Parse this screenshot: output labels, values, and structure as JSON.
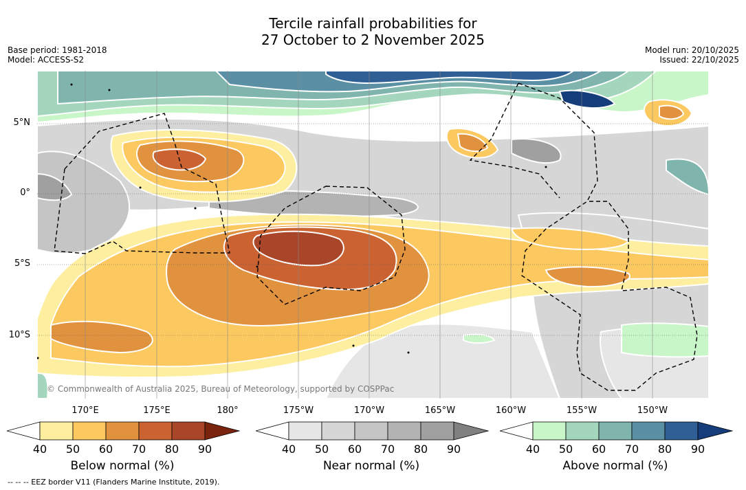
{
  "title_line1": "Tercile rainfall probabilities for",
  "title_line2": "27 October to 2 November 2025",
  "meta_left": {
    "base_period": "Base period: 1981-2018",
    "model": "Model: ACCESS-S2"
  },
  "meta_right": {
    "model_run": "Model run: 20/10/2025",
    "issued": "Issued: 22/10/2025"
  },
  "lat_labels": [
    "5°N",
    "0°",
    "5°S",
    "10°S"
  ],
  "lon_labels": [
    "170°E",
    "175°E",
    "180°",
    "175°W",
    "170°W",
    "165°W",
    "160°W",
    "155°W",
    "150°W"
  ],
  "copyright": "© Commonwealth of Australia 2025, Bureau of Meteorology, supported by COSPPac",
  "footnote": "--  --  -- EEZ border V11 (Flanders Marine Institute, 2019).",
  "colorbars": [
    {
      "label": "Below normal (%)",
      "ticks": [
        "40",
        "50",
        "60",
        "70",
        "80",
        "90"
      ],
      "colors": [
        "#ffffff",
        "#fdeea0",
        "#fcc961",
        "#e0923f",
        "#cb6232",
        "#a9462a",
        "#7a2410"
      ]
    },
    {
      "label": "Near normal (%)",
      "ticks": [
        "40",
        "50",
        "60",
        "70",
        "80",
        "90"
      ],
      "colors": [
        "#ffffff",
        "#e6e6e6",
        "#d6d6d6",
        "#c5c5c5",
        "#b3b3b3",
        "#a0a0a0",
        "#808080"
      ]
    },
    {
      "label": "Above normal (%)",
      "ticks": [
        "40",
        "50",
        "60",
        "70",
        "80",
        "90"
      ],
      "colors": [
        "#ffffff",
        "#c8f6c8",
        "#a3d6bc",
        "#7fb5ad",
        "#5a8fa4",
        "#2f5f94",
        "#143d7a"
      ]
    }
  ]
}
